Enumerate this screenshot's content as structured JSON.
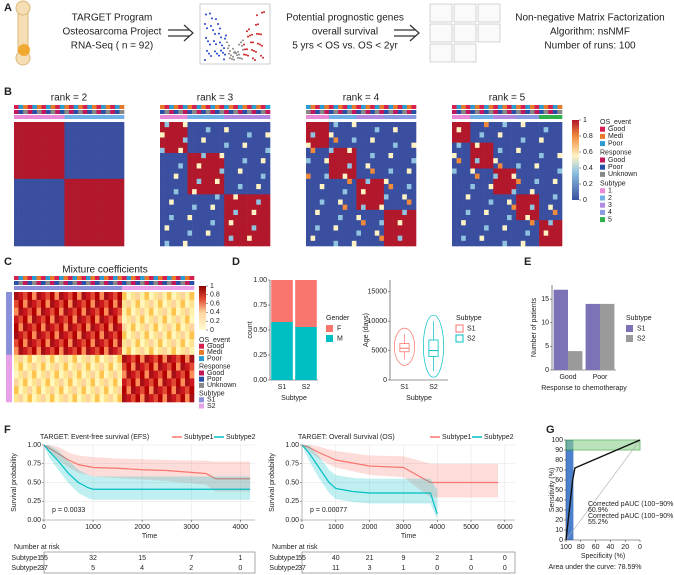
{
  "panel_labels": [
    "A",
    "B",
    "C",
    "D",
    "E",
    "F",
    "G"
  ],
  "pipeline": {
    "data_source": [
      "TARGET Program",
      "Osteosarcoma Project",
      "RNA-Seq ( n = 92)"
    ],
    "gene_selection": [
      "Potential prognostic genes",
      "overall survival",
      "5 yrs < OS vs. OS < 2yr"
    ],
    "clustering": [
      "Non-negative Matrix Factorization",
      "Algorithm: nsNMF",
      "Number of runs: 100"
    ]
  },
  "consensus": {
    "titles": [
      "rank = 2",
      "rank = 3",
      "rank = 4",
      "rank = 5"
    ],
    "colorbar_ticks": [
      0,
      0.2,
      0.4,
      0.6,
      0.8,
      1
    ],
    "legend": [
      {
        "title": "OS_event",
        "items": [
          {
            "label": "Good",
            "color": "#d6204f"
          },
          {
            "label": "Medi",
            "color": "#e87a2c"
          },
          {
            "label": "Poor",
            "color": "#2b9bd1"
          }
        ]
      },
      {
        "title": "Response",
        "items": [
          {
            "label": "Good",
            "color": "#c2185b"
          },
          {
            "label": "Poor",
            "color": "#2850a8"
          },
          {
            "label": "Unknown",
            "color": "#888888"
          }
        ]
      },
      {
        "title": "Subtype",
        "items": [
          {
            "label": "1",
            "color": "#e88ad8"
          },
          {
            "label": "2",
            "color": "#6fb0e6"
          },
          {
            "label": "3",
            "color": "#b08ae0"
          },
          {
            "label": "4",
            "color": "#8a9ae0"
          },
          {
            "label": "5",
            "color": "#2fb04a"
          }
        ]
      }
    ]
  },
  "mixture": {
    "title": "Mixture coefficients",
    "colorbar_ticks": [
      0,
      0.2,
      0.4,
      0.6,
      0.8,
      1
    ],
    "legend": [
      {
        "title": "OS_event",
        "items": [
          {
            "label": "Good",
            "color": "#d6204f"
          },
          {
            "label": "Medi",
            "color": "#e87a2c"
          },
          {
            "label": "Poor",
            "color": "#2b9bd1"
          }
        ]
      },
      {
        "title": "Response",
        "items": [
          {
            "label": "Good",
            "color": "#c2185b"
          },
          {
            "label": "Poor",
            "color": "#2850a8"
          },
          {
            "label": "Unknown",
            "color": "#888888"
          }
        ]
      },
      {
        "title": "Subtype",
        "items": [
          {
            "label": "S1",
            "color": "#8a8fd8"
          },
          {
            "label": "S2",
            "color": "#e8a0e8"
          }
        ]
      }
    ]
  },
  "chart_data": [
    {
      "type": "stacked_bar",
      "xlabel": "Subtype",
      "ylabel": "count",
      "categories": [
        "S1",
        "S2"
      ],
      "ylim": [
        0,
        1
      ],
      "yticks": [
        {
          "value": 0,
          "label": "0.00"
        },
        0.25,
        {
          "value": 0.5,
          "label": "0.50"
        },
        0.75,
        {
          "value": 1,
          "label": "1.00"
        }
      ],
      "legend_title": "Gender",
      "series": [
        {
          "name": "F",
          "color": "#f8766d",
          "values": [
            0.42,
            0.47
          ]
        },
        {
          "name": "M",
          "color": "#00bfc4",
          "values": [
            0.58,
            0.53
          ]
        }
      ]
    },
    {
      "type": "box",
      "xlabel": "Subtype",
      "ylabel": "Age (days)",
      "categories": [
        "S1",
        "S2"
      ],
      "colors": [
        "#f8766d",
        "#00bfc4"
      ],
      "ylim": [
        0,
        17000
      ],
      "yticks": [
        0,
        5000,
        10000,
        15000
      ],
      "legend_title": "Subtype",
      "min": [
        3500,
        1500
      ],
      "q1": [
        4800,
        4000
      ],
      "median": [
        5400,
        5000
      ],
      "q3": [
        6200,
        6800
      ],
      "max": [
        7800,
        10000
      ]
    },
    {
      "type": "grouped_bar",
      "xlabel": "Response to chemotherapy",
      "ylabel": "Number of patients",
      "categories": [
        "Good",
        "Poor"
      ],
      "ylim": [
        0,
        18
      ],
      "yticks": [
        0,
        5,
        10,
        15
      ],
      "legend_title": "Subtype",
      "series": [
        {
          "name": "S1",
          "color": "#7b73b5",
          "values": [
            17,
            14
          ]
        },
        {
          "name": "S2",
          "color": "#9a9a9a",
          "values": [
            4,
            14
          ]
        }
      ]
    },
    {
      "type": "survival",
      "title": "TARGET:  Event-free survival (EFS)",
      "xlabel": "Time",
      "ylabel": "Survival probability",
      "xlim": [
        0,
        4300
      ],
      "xticks": [
        0,
        1000,
        2000,
        3000,
        4000
      ],
      "ylim": [
        0,
        1
      ],
      "yticks": [
        {
          "value": 0,
          "label": "0.00"
        },
        0.25,
        {
          "value": 0.5,
          "label": "0.50"
        },
        0.75,
        {
          "value": 1,
          "label": "1.00"
        }
      ],
      "p_value": "p = 0.0033",
      "series": [
        {
          "name": "Subtype1",
          "color": "#f8766d",
          "x": [
            0,
            100,
            300,
            500,
            700,
            1000,
            1500,
            2000,
            2500,
            3300,
            3500,
            4200
          ],
          "values": [
            1,
            0.96,
            0.88,
            0.8,
            0.74,
            0.7,
            0.69,
            0.67,
            0.66,
            0.62,
            0.55,
            0.55
          ],
          "lower": [
            1,
            0.91,
            0.8,
            0.7,
            0.63,
            0.58,
            0.56,
            0.54,
            0.52,
            0.47,
            0.38,
            0.38
          ],
          "upper": [
            1,
            1,
            0.97,
            0.9,
            0.86,
            0.84,
            0.82,
            0.81,
            0.8,
            0.79,
            0.78,
            0.78
          ]
        },
        {
          "name": "Subtype2",
          "color": "#00bfc4",
          "x": [
            0,
            100,
            300,
            500,
            700,
            900,
            1000,
            2000,
            3300,
            4200
          ],
          "values": [
            1,
            0.92,
            0.78,
            0.62,
            0.5,
            0.43,
            0.41,
            0.41,
            0.41,
            0.41
          ],
          "lower": [
            1,
            0.84,
            0.66,
            0.49,
            0.36,
            0.29,
            0.27,
            0.27,
            0.27,
            0.27
          ],
          "upper": [
            1,
            1,
            0.92,
            0.79,
            0.67,
            0.6,
            0.58,
            0.58,
            0.58,
            0.58
          ]
        }
      ],
      "risk_table": {
        "title": "Number at risk",
        "rows": [
          [
            55,
            32,
            15,
            7,
            1
          ],
          [
            37,
            5,
            4,
            2,
            0
          ]
        ]
      }
    },
    {
      "type": "survival",
      "title": "TARGET:  Overall Survival (OS)",
      "xlabel": "Time",
      "ylabel": "Survival probability",
      "xlim": [
        0,
        6300
      ],
      "xticks": [
        0,
        1000,
        2000,
        3000,
        4000,
        5000,
        6000
      ],
      "ylim": [
        0,
        1
      ],
      "yticks": [
        {
          "value": 0,
          "label": "0.00"
        },
        0.25,
        {
          "value": 0.5,
          "label": "0.50"
        },
        0.75,
        {
          "value": 1,
          "label": "1.00"
        }
      ],
      "p_value": "p = 0.00077",
      "series": [
        {
          "name": "Subtype1",
          "color": "#f8766d",
          "x": [
            0,
            200,
            500,
            800,
            1000,
            1500,
            2000,
            3000,
            3800,
            5800
          ],
          "values": [
            1,
            0.97,
            0.9,
            0.84,
            0.8,
            0.76,
            0.72,
            0.7,
            0.5,
            0.5
          ],
          "lower": [
            1,
            0.92,
            0.82,
            0.74,
            0.7,
            0.65,
            0.6,
            0.57,
            0.3,
            0.3
          ],
          "upper": [
            1,
            1,
            0.98,
            0.94,
            0.92,
            0.89,
            0.86,
            0.85,
            0.75,
            0.75
          ]
        },
        {
          "name": "Subtype2",
          "color": "#00bfc4",
          "x": [
            0,
            200,
            500,
            800,
            1000,
            1500,
            2000,
            3800,
            4000
          ],
          "values": [
            1,
            0.9,
            0.7,
            0.5,
            0.42,
            0.38,
            0.36,
            0.36,
            0.08
          ],
          "lower": [
            1,
            0.8,
            0.56,
            0.36,
            0.28,
            0.24,
            0.22,
            0.22,
            0.01
          ],
          "upper": [
            1,
            1,
            0.85,
            0.67,
            0.6,
            0.56,
            0.55,
            0.55,
            0.4
          ]
        }
      ],
      "risk_table": {
        "title": "Number at risk",
        "rows": [
          [
            55,
            40,
            21,
            9,
            2,
            1,
            0
          ],
          [
            37,
            11,
            3,
            1,
            0,
            0,
            0
          ]
        ]
      }
    },
    {
      "type": "roc",
      "xlabel": "Specificity (%)",
      "ylabel": "Sensitivity (%)",
      "xlim": [
        100,
        0
      ],
      "xticks": [
        100,
        80,
        60,
        40,
        20,
        0
      ],
      "ylim": [
        0,
        100
      ],
      "yticks": [
        0,
        10,
        20,
        30,
        40,
        50,
        60,
        70,
        80,
        90,
        100
      ],
      "x": [
        100,
        91,
        88,
        0
      ],
      "values": [
        0,
        60,
        72,
        100
      ],
      "sp_range": [
        100,
        90
      ],
      "se_range": [
        90,
        100
      ],
      "annotations": [
        {
          "text": "Corrected pAUC (100~90% SP):",
          "color": "#1f5fbf"
        },
        {
          "text": "60.9%",
          "color": "#1f5fbf"
        },
        {
          "text": "Corrected pAUC (100~90% SE):",
          "color": "#2a9a2a"
        },
        {
          "text": "55.2%",
          "color": "#2a9a2a"
        }
      ],
      "auc_label": "Area under the curve: 78.59%"
    }
  ]
}
